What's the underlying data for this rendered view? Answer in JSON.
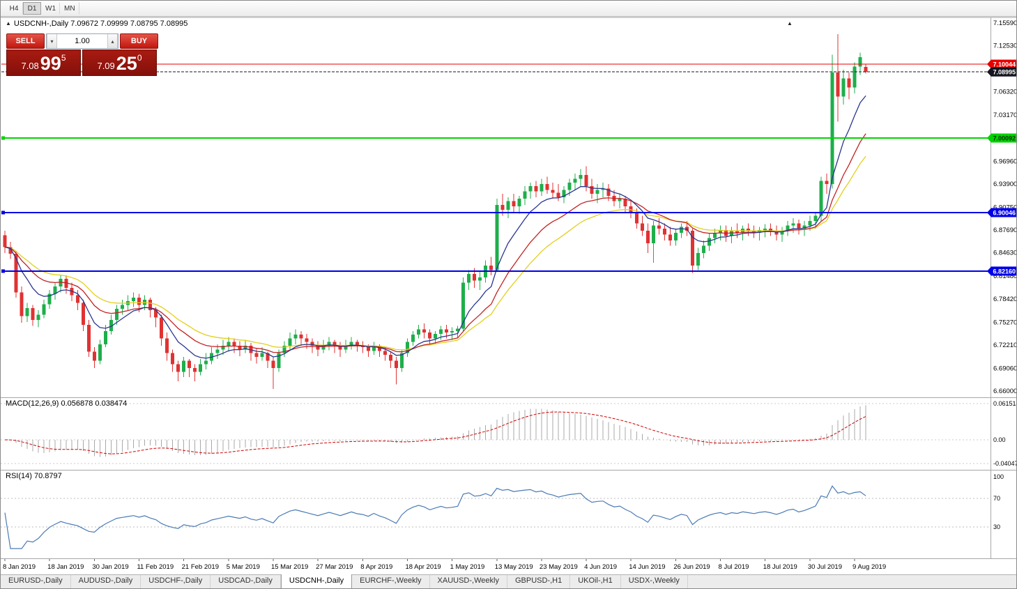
{
  "toolbar": {
    "periods": [
      "H4",
      "D1",
      "W1",
      "MN"
    ],
    "active_period": "D1"
  },
  "titles": {
    "main": "USDCNH-,Daily 7.09672 7.09999 7.08795 7.08995",
    "macd": "MACD(12,26,9) 0.056878 0.038474",
    "rsi": "RSI(14) 70.8797"
  },
  "icons": {
    "panel_toggle": "▲",
    "subwindow_arrow": "▲",
    "spinner_up": "▴",
    "spinner_down": "▾"
  },
  "trade_panel": {
    "sell_label": "SELL",
    "buy_label": "BUY",
    "volume": "1.00",
    "sell_price": {
      "prefix": "7.08",
      "pips": "99",
      "point": "5"
    },
    "buy_price": {
      "prefix": "7.09",
      "pips": "25",
      "point": "0"
    }
  },
  "tabs": [
    "EURUSD-,Daily",
    "AUDUSD-,Daily",
    "USDCHF-,Daily",
    "USDCAD-,Daily",
    "USDCNH-,Daily",
    "EURCHF-,Weekly",
    "XAUUSD-,Weekly",
    "GBPUSD-,H1",
    "UKOil-,H1",
    "USDX-,Weekly"
  ],
  "active_tab": "USDCNH-,Daily",
  "chart_data": {
    "type": "candlestick",
    "symbol": "USDCNH",
    "timeframe": "Daily",
    "current_ohlc": {
      "open": "7.09672",
      "high": "7.09999",
      "low": "7.08795",
      "close": "7.08995"
    },
    "price_axis": {
      "min": 6.66,
      "max": 7.1559,
      "ticks": [
        "7.15590",
        "7.12530",
        "7.09460",
        "7.06320",
        "7.03170",
        "7.00020",
        "6.96960",
        "6.93900",
        "6.90750",
        "6.87690",
        "6.84630",
        "6.81480",
        "6.78420",
        "6.75270",
        "6.72210",
        "6.69060",
        "6.66000"
      ]
    },
    "time_axis": {
      "bars_per_label": 8,
      "labels": [
        "8 Jan 2019",
        "18 Jan 2019",
        "30 Jan 2019",
        "11 Feb 2019",
        "21 Feb 2019",
        "5 Mar 2019",
        "15 Mar 2019",
        "27 Mar 2019",
        "8 Apr 2019",
        "18 Apr 2019",
        "1 May 2019",
        "13 May 2019",
        "23 May 2019",
        "4 Jun 2019",
        "14 Jun 2019",
        "26 Jun 2019",
        "8 Jul 2019",
        "18 Jul 2019",
        "30 Jul 2019",
        "9 Aug 2019"
      ]
    },
    "levels": [
      {
        "value": 7.10044,
        "label": "7.10044",
        "color": "#e80000",
        "text": "#ffffff",
        "width": 1.4,
        "handle": false
      },
      {
        "value": 7.08995,
        "label": "7.08995",
        "color": "#15151f",
        "text": "#ffffff",
        "width": 1,
        "dash": "4 2",
        "handle": false
      },
      {
        "value": 7.00092,
        "label": "7.00092",
        "color": "#00d300",
        "text": "#003000",
        "width": 2,
        "handle": true
      },
      {
        "value": 6.90046,
        "label": "6.90046",
        "color": "#0000e8",
        "text": "#ffffff",
        "width": 2,
        "handle": true
      },
      {
        "value": 6.8216,
        "label": "6.82160",
        "color": "#0000e8",
        "text": "#ffffff",
        "width": 2,
        "handle": true
      }
    ],
    "moving_averages": [
      {
        "type": "ema",
        "period": 8,
        "color": "#2a3590"
      },
      {
        "type": "ema",
        "period": 16,
        "color": "#c32222"
      },
      {
        "type": "ema",
        "period": 24,
        "color": "#e3cf1c"
      }
    ],
    "colors": {
      "bull": "#1fae4b",
      "bear": "#e03232"
    },
    "macd": {
      "params": [
        12,
        26,
        9
      ],
      "value": "0.056878",
      "signal_value": "0.038474",
      "hist_color": "#a8a8a8",
      "signal_color": "#d00000",
      "axis": [
        {
          "label": "0.061514",
          "value": 0.061514
        },
        {
          "label": "0.00",
          "value": 0
        },
        {
          "label": "-0.04047",
          "value": -0.04047
        }
      ]
    },
    "rsi": {
      "period": 14,
      "value": "70.8797",
      "color": "#4a7ab5",
      "levels": [
        70,
        30
      ],
      "axis": [
        {
          "label": "100",
          "value": 100
        },
        {
          "label": "70",
          "value": 70
        },
        {
          "label": "30",
          "value": 30
        }
      ]
    },
    "candles": [
      [
        6.87,
        6.876,
        6.846,
        6.854
      ],
      [
        6.854,
        6.861,
        6.838,
        6.845
      ],
      [
        6.845,
        6.849,
        6.786,
        6.793
      ],
      [
        6.793,
        6.801,
        6.752,
        6.761
      ],
      [
        6.761,
        6.779,
        6.753,
        6.772
      ],
      [
        6.772,
        6.776,
        6.748,
        6.756
      ],
      [
        6.756,
        6.769,
        6.746,
        6.763
      ],
      [
        6.763,
        6.783,
        6.758,
        6.777
      ],
      [
        6.777,
        6.796,
        6.771,
        6.791
      ],
      [
        6.791,
        6.806,
        6.783,
        6.801
      ],
      [
        6.801,
        6.816,
        6.793,
        6.811
      ],
      [
        6.811,
        6.816,
        6.791,
        6.799
      ],
      [
        6.799,
        6.806,
        6.781,
        6.789
      ],
      [
        6.789,
        6.796,
        6.769,
        6.779
      ],
      [
        6.779,
        6.783,
        6.741,
        6.749
      ],
      [
        6.749,
        6.756,
        6.706,
        6.713
      ],
      [
        6.713,
        6.719,
        6.691,
        6.701
      ],
      [
        6.701,
        6.729,
        6.696,
        6.723
      ],
      [
        6.723,
        6.749,
        6.719,
        6.741
      ],
      [
        6.741,
        6.763,
        6.736,
        6.756
      ],
      [
        6.756,
        6.776,
        6.749,
        6.771
      ],
      [
        6.771,
        6.783,
        6.763,
        6.776
      ],
      [
        6.776,
        6.789,
        6.769,
        6.781
      ],
      [
        6.781,
        6.793,
        6.773,
        6.786
      ],
      [
        6.786,
        6.791,
        6.766,
        6.776
      ],
      [
        6.776,
        6.789,
        6.769,
        6.783
      ],
      [
        6.783,
        6.786,
        6.759,
        6.769
      ],
      [
        6.769,
        6.773,
        6.746,
        6.759
      ],
      [
        6.759,
        6.763,
        6.721,
        6.731
      ],
      [
        6.731,
        6.739,
        6.701,
        6.711
      ],
      [
        6.711,
        6.716,
        6.686,
        6.696
      ],
      [
        6.696,
        6.701,
        6.673,
        6.686
      ],
      [
        6.686,
        6.706,
        6.679,
        6.701
      ],
      [
        6.701,
        6.703,
        6.679,
        6.691
      ],
      [
        6.691,
        6.696,
        6.673,
        6.686
      ],
      [
        6.686,
        6.703,
        6.681,
        6.696
      ],
      [
        6.696,
        6.711,
        6.689,
        6.701
      ],
      [
        6.701,
        6.719,
        6.696,
        6.711
      ],
      [
        6.711,
        6.723,
        6.703,
        6.716
      ],
      [
        6.716,
        6.729,
        6.709,
        6.721
      ],
      [
        6.721,
        6.733,
        6.713,
        6.726
      ],
      [
        6.726,
        6.731,
        6.711,
        6.721
      ],
      [
        6.721,
        6.727,
        6.707,
        6.716
      ],
      [
        6.716,
        6.729,
        6.711,
        6.721
      ],
      [
        6.721,
        6.725,
        6.701,
        6.711
      ],
      [
        6.711,
        6.717,
        6.697,
        6.706
      ],
      [
        6.706,
        6.719,
        6.701,
        6.711
      ],
      [
        6.711,
        6.713,
        6.691,
        6.701
      ],
      [
        6.701,
        6.706,
        6.663,
        6.691
      ],
      [
        6.691,
        6.716,
        6.686,
        6.711
      ],
      [
        6.711,
        6.727,
        6.706,
        6.721
      ],
      [
        6.721,
        6.739,
        6.716,
        6.731
      ],
      [
        6.731,
        6.743,
        6.723,
        6.736
      ],
      [
        6.736,
        6.741,
        6.721,
        6.731
      ],
      [
        6.731,
        6.737,
        6.717,
        6.726
      ],
      [
        6.726,
        6.731,
        6.711,
        6.721
      ],
      [
        6.721,
        6.727,
        6.707,
        6.716
      ],
      [
        6.716,
        6.729,
        6.711,
        6.721
      ],
      [
        6.721,
        6.733,
        6.715,
        6.726
      ],
      [
        6.726,
        6.729,
        6.711,
        6.721
      ],
      [
        6.721,
        6.726,
        6.706,
        6.716
      ],
      [
        6.716,
        6.729,
        6.711,
        6.721
      ],
      [
        6.721,
        6.733,
        6.716,
        6.726
      ],
      [
        6.726,
        6.729,
        6.713,
        6.721
      ],
      [
        6.721,
        6.727,
        6.711,
        6.719
      ],
      [
        6.719,
        6.723,
        6.706,
        6.714
      ],
      [
        6.714,
        6.726,
        6.709,
        6.721
      ],
      [
        6.721,
        6.723,
        6.706,
        6.714
      ],
      [
        6.714,
        6.719,
        6.701,
        6.709
      ],
      [
        6.709,
        6.713,
        6.691,
        6.701
      ],
      [
        6.701,
        6.706,
        6.669,
        6.691
      ],
      [
        6.691,
        6.716,
        6.686,
        6.711
      ],
      [
        6.711,
        6.731,
        6.706,
        6.726
      ],
      [
        6.726,
        6.741,
        6.721,
        6.736
      ],
      [
        6.736,
        6.749,
        6.731,
        6.743
      ],
      [
        6.743,
        6.751,
        6.731,
        6.739
      ],
      [
        6.739,
        6.743,
        6.723,
        6.731
      ],
      [
        6.731,
        6.741,
        6.723,
        6.737
      ],
      [
        6.737,
        6.748,
        6.729,
        6.743
      ],
      [
        6.743,
        6.749,
        6.731,
        6.739
      ],
      [
        6.739,
        6.746,
        6.729,
        6.741
      ],
      [
        6.741,
        6.748,
        6.731,
        6.744
      ],
      [
        6.744,
        6.813,
        6.741,
        6.806
      ],
      [
        6.806,
        6.823,
        6.796,
        6.818
      ],
      [
        6.818,
        6.826,
        6.799,
        6.809
      ],
      [
        6.809,
        6.821,
        6.796,
        6.813
      ],
      [
        6.813,
        6.836,
        6.806,
        6.829
      ],
      [
        6.829,
        6.841,
        6.816,
        6.823
      ],
      [
        6.823,
        6.919,
        6.821,
        6.911
      ],
      [
        6.911,
        6.926,
        6.896,
        6.904
      ],
      [
        6.904,
        6.921,
        6.893,
        6.916
      ],
      [
        6.916,
        6.926,
        6.901,
        6.909
      ],
      [
        6.909,
        6.923,
        6.899,
        6.919
      ],
      [
        6.919,
        6.936,
        6.911,
        6.929
      ],
      [
        6.929,
        6.941,
        6.919,
        6.936
      ],
      [
        6.936,
        6.943,
        6.921,
        6.929
      ],
      [
        6.929,
        6.946,
        6.923,
        6.939
      ],
      [
        6.939,
        6.949,
        6.926,
        6.931
      ],
      [
        6.931,
        6.941,
        6.919,
        6.927
      ],
      [
        6.927,
        6.939,
        6.916,
        6.921
      ],
      [
        6.921,
        6.936,
        6.913,
        6.931
      ],
      [
        6.931,
        6.946,
        6.923,
        6.941
      ],
      [
        6.941,
        6.953,
        6.931,
        6.946
      ],
      [
        6.946,
        6.959,
        6.936,
        6.951
      ],
      [
        6.951,
        6.963,
        6.929,
        6.936
      ],
      [
        6.936,
        6.946,
        6.919,
        6.926
      ],
      [
        6.926,
        6.939,
        6.913,
        6.931
      ],
      [
        6.931,
        6.941,
        6.921,
        6.933
      ],
      [
        6.933,
        6.939,
        6.916,
        6.923
      ],
      [
        6.923,
        6.931,
        6.909,
        6.916
      ],
      [
        6.916,
        6.926,
        6.906,
        6.919
      ],
      [
        6.919,
        6.923,
        6.901,
        6.909
      ],
      [
        6.909,
        6.916,
        6.893,
        6.901
      ],
      [
        6.901,
        6.906,
        6.879,
        6.886
      ],
      [
        6.886,
        6.896,
        6.869,
        6.876
      ],
      [
        6.876,
        6.886,
        6.846,
        6.859
      ],
      [
        6.859,
        6.889,
        6.833,
        6.883
      ],
      [
        6.883,
        6.893,
        6.871,
        6.879
      ],
      [
        6.879,
        6.886,
        6.863,
        6.871
      ],
      [
        6.871,
        6.881,
        6.856,
        6.863
      ],
      [
        6.863,
        6.879,
        6.856,
        6.873
      ],
      [
        6.873,
        6.886,
        6.866,
        6.881
      ],
      [
        6.881,
        6.889,
        6.869,
        6.876
      ],
      [
        6.876,
        6.879,
        6.819,
        6.829
      ],
      [
        6.829,
        6.853,
        6.823,
        6.846
      ],
      [
        6.846,
        6.863,
        6.839,
        6.856
      ],
      [
        6.856,
        6.873,
        6.849,
        6.866
      ],
      [
        6.866,
        6.879,
        6.859,
        6.873
      ],
      [
        6.873,
        6.883,
        6.863,
        6.877
      ],
      [
        6.877,
        6.883,
        6.861,
        6.869
      ],
      [
        6.869,
        6.881,
        6.859,
        6.876
      ],
      [
        6.876,
        6.886,
        6.866,
        6.873
      ],
      [
        6.873,
        6.883,
        6.863,
        6.879
      ],
      [
        6.879,
        6.886,
        6.869,
        6.876
      ],
      [
        6.876,
        6.883,
        6.866,
        6.873
      ],
      [
        6.873,
        6.881,
        6.863,
        6.877
      ],
      [
        6.877,
        6.885,
        6.867,
        6.879
      ],
      [
        6.879,
        6.886,
        6.869,
        6.876
      ],
      [
        6.876,
        6.883,
        6.863,
        6.871
      ],
      [
        6.871,
        6.881,
        6.861,
        6.876
      ],
      [
        6.876,
        6.889,
        6.869,
        6.883
      ],
      [
        6.883,
        6.893,
        6.873,
        6.886
      ],
      [
        6.886,
        6.891,
        6.871,
        6.879
      ],
      [
        6.879,
        6.889,
        6.869,
        6.883
      ],
      [
        6.883,
        6.896,
        6.876,
        6.889
      ],
      [
        6.889,
        6.901,
        6.879,
        6.896
      ],
      [
        6.896,
        6.949,
        6.889,
        6.943
      ],
      [
        6.943,
        6.953,
        6.926,
        6.939
      ],
      [
        6.939,
        7.113,
        6.933,
        7.089
      ],
      [
        7.089,
        7.141,
        7.023,
        7.057
      ],
      [
        7.057,
        7.093,
        7.046,
        7.081
      ],
      [
        7.081,
        7.089,
        7.053,
        7.069
      ],
      [
        7.069,
        7.103,
        7.061,
        7.097
      ],
      [
        7.097,
        7.116,
        7.086,
        7.11
      ],
      [
        7.0967,
        7.1,
        7.088,
        7.09
      ]
    ]
  }
}
